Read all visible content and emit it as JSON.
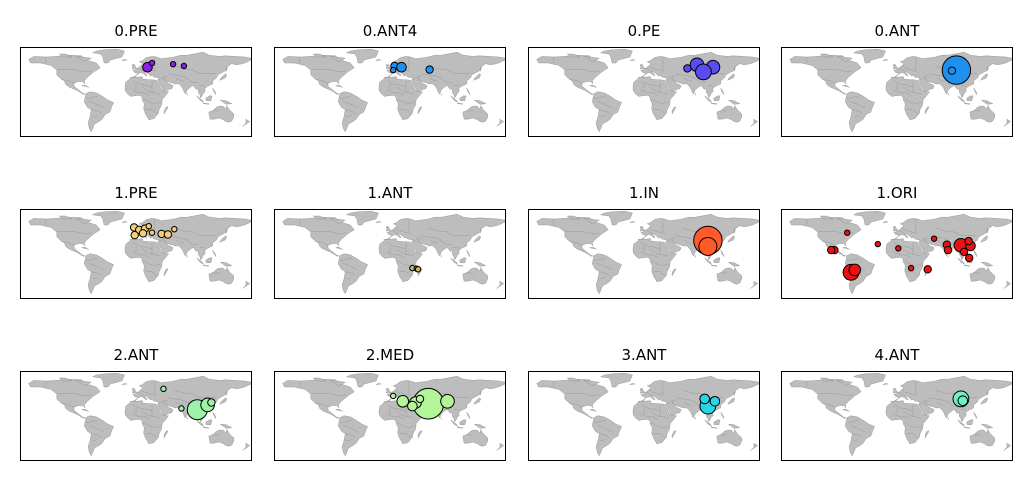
{
  "colors": {
    "land": "#bdbdbd",
    "border": "#8a8a8a",
    "marker_outline": "#000000"
  },
  "panels": [
    {
      "title": "0.PRE",
      "color": "#8a1fe8",
      "markers": [
        {
          "lon": 18,
          "lat": 53,
          "size": 3
        },
        {
          "lon": 25,
          "lat": 60,
          "size": 1
        },
        {
          "lon": 58,
          "lat": 58,
          "size": 1
        },
        {
          "lon": 75,
          "lat": 55,
          "size": 1
        }
      ]
    },
    {
      "title": "0.ANT4",
      "color": "#1f8ff0",
      "markers": [
        {
          "lon": 7,
          "lat": 55,
          "size": 2
        },
        {
          "lon": 18,
          "lat": 53,
          "size": 3
        },
        {
          "lon": 5,
          "lat": 48,
          "size": 1
        },
        {
          "lon": 62,
          "lat": 49,
          "size": 2
        }
      ]
    },
    {
      "title": "0.PE",
      "color": "#5a4cf0",
      "markers": [
        {
          "lon": 83,
          "lat": 57,
          "size": 5
        },
        {
          "lon": 108,
          "lat": 53,
          "size": 5
        },
        {
          "lon": 93,
          "lat": 45,
          "size": 6
        },
        {
          "lon": 68,
          "lat": 51,
          "size": 2
        }
      ]
    },
    {
      "title": "0.ANT",
      "color": "#1f8ff0",
      "markers": [
        {
          "lon": 93,
          "lat": 48,
          "size": 12
        },
        {
          "lon": 86,
          "lat": 47,
          "size": 2
        }
      ]
    },
    {
      "title": "1.PRE",
      "color": "#f2cf74",
      "markers": [
        {
          "lon": -3,
          "lat": 56,
          "size": 2
        },
        {
          "lon": 5,
          "lat": 52,
          "size": 2
        },
        {
          "lon": 14,
          "lat": 54,
          "size": 2
        },
        {
          "lon": 20,
          "lat": 58,
          "size": 1
        },
        {
          "lon": 11,
          "lat": 46,
          "size": 2
        },
        {
          "lon": -2,
          "lat": 43,
          "size": 2
        },
        {
          "lon": 25,
          "lat": 47,
          "size": 1
        },
        {
          "lon": 40,
          "lat": 45,
          "size": 2
        },
        {
          "lon": 50,
          "lat": 44,
          "size": 2
        },
        {
          "lon": 60,
          "lat": 53,
          "size": 1
        }
      ]
    },
    {
      "title": "1.ANT",
      "color": "#c9b85c",
      "markers": [
        {
          "lon": 35,
          "lat": -12,
          "size": 1
        },
        {
          "lon": 42,
          "lat": -13,
          "size": 1
        },
        {
          "lon": 44,
          "lat": -14,
          "size": 1
        }
      ]
    },
    {
      "title": "1.IN",
      "color": "#ff5a2a",
      "markers": [
        {
          "lon": 100,
          "lat": 34,
          "size": 12
        },
        {
          "lon": 100,
          "lat": 24,
          "size": 7
        }
      ]
    },
    {
      "title": "1.ORI",
      "color": "#ee1111",
      "markers": [
        {
          "lon": -98,
          "lat": 18,
          "size": 2
        },
        {
          "lon": -103,
          "lat": 18,
          "size": 2
        },
        {
          "lon": -72,
          "lat": -19,
          "size": 6
        },
        {
          "lon": -66,
          "lat": -15,
          "size": 4
        },
        {
          "lon": 2,
          "lat": 21,
          "size": 1
        },
        {
          "lon": 22,
          "lat": -12,
          "size": 1
        },
        {
          "lon": 48,
          "lat": -14,
          "size": 2
        },
        {
          "lon": 78,
          "lat": 27,
          "size": 2
        },
        {
          "lon": 80,
          "lat": 18,
          "size": 2
        },
        {
          "lon": 100,
          "lat": 26,
          "size": 5
        },
        {
          "lon": 115,
          "lat": 25,
          "size": 3
        },
        {
          "lon": 112,
          "lat": 33,
          "size": 2
        },
        {
          "lon": 105,
          "lat": 15,
          "size": 2
        },
        {
          "lon": 113,
          "lat": 5,
          "size": 2
        },
        {
          "lon": 58,
          "lat": 37,
          "size": 1
        },
        {
          "lon": -78,
          "lat": 47,
          "size": 1
        },
        {
          "lon": -30,
          "lat": 28,
          "size": 1
        }
      ]
    },
    {
      "title": "2.ANT",
      "color": "#9cf2a8",
      "markers": [
        {
          "lon": 96,
          "lat": 22,
          "size": 8
        },
        {
          "lon": 112,
          "lat": 30,
          "size": 5
        },
        {
          "lon": 118,
          "lat": 34,
          "size": 2
        },
        {
          "lon": 71,
          "lat": 24,
          "size": 1
        },
        {
          "lon": 43,
          "lat": 57,
          "size": 1
        }
      ]
    },
    {
      "title": "2.MED",
      "color": "#b4f59a",
      "markers": [
        {
          "lon": 60,
          "lat": 32,
          "size": 13
        },
        {
          "lon": 20,
          "lat": 36,
          "size": 4
        },
        {
          "lon": 40,
          "lat": 34,
          "size": 4
        },
        {
          "lon": 35,
          "lat": 28,
          "size": 3
        },
        {
          "lon": 90,
          "lat": 36,
          "size": 5
        },
        {
          "lon": 47,
          "lat": 40,
          "size": 2
        },
        {
          "lon": 5,
          "lat": 45,
          "size": 1
        }
      ]
    },
    {
      "title": "3.ANT",
      "color": "#2ad6e6",
      "markers": [
        {
          "lon": 100,
          "lat": 28,
          "size": 6
        },
        {
          "lon": 111,
          "lat": 36,
          "size": 3
        },
        {
          "lon": 95,
          "lat": 40,
          "size": 3
        }
      ]
    },
    {
      "title": "4.ANT",
      "color": "#6ff0c8",
      "markers": [
        {
          "lon": 100,
          "lat": 40,
          "size": 6
        },
        {
          "lon": 103,
          "lat": 37,
          "size": 3
        }
      ]
    }
  ]
}
